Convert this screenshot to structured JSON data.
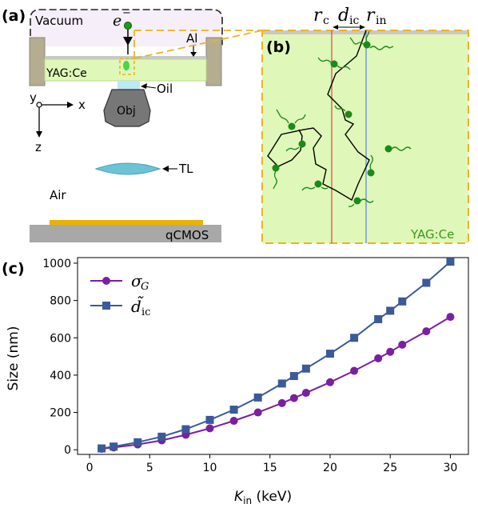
{
  "panel_a": {
    "label": "(a)",
    "vacuum": "Vacuum",
    "electron": "e",
    "electron_sup": "−",
    "al": "Al",
    "yag": "YAG:Ce",
    "oil": "Oil",
    "obj": "Obj",
    "axis_y": "y",
    "axis_x": "x",
    "axis_z": "z",
    "tl": "TL",
    "air": "Air",
    "detector": "qCMOS"
  },
  "panel_b": {
    "label": "(b)",
    "yag": "YAG:Ce",
    "r_c": "r",
    "r_c_sub": "c",
    "d_ic": "d",
    "d_ic_sub": "ic",
    "r_in": "r",
    "r_in_sub": "in"
  },
  "panel_c": {
    "label": "(c)"
  },
  "colors": {
    "yag_fill": "#dff7b8",
    "vacuum_fill": "#f6eef8",
    "dash_orange": "#e8b422",
    "sigma_color": "#7a1fa2",
    "dic_color": "#3a5a99",
    "rc_line": "#e05050",
    "rin_line": "#6688dd",
    "green_dot": "#1a8a1a"
  },
  "chart_data": {
    "type": "line",
    "xlabel": "K",
    "xlabel_sub": "in",
    "xlabel_unit": " (keV)",
    "ylabel": "Size (nm)",
    "xlim": [
      -1,
      31.5
    ],
    "ylim": [
      -25,
      1030
    ],
    "xticks": [
      0,
      5,
      10,
      15,
      20,
      25,
      30
    ],
    "yticks": [
      0,
      200,
      400,
      600,
      800,
      1000
    ],
    "legend_position": "top-left",
    "series": [
      {
        "name": "σ",
        "name_sub": "G",
        "marker": "circle",
        "color": "#7a1fa2",
        "x": [
          1,
          2,
          4,
          6,
          8,
          10,
          12,
          14,
          16,
          17,
          18,
          20,
          22,
          24,
          25,
          26,
          28,
          30
        ],
        "y": [
          5,
          12,
          28,
          50,
          80,
          115,
          155,
          200,
          250,
          277,
          305,
          362,
          423,
          490,
          525,
          563,
          635,
          712
        ]
      },
      {
        "name": "d̃",
        "name_sub": "ic",
        "marker": "square",
        "color": "#3a5a99",
        "x": [
          1,
          2,
          4,
          6,
          8,
          10,
          12,
          14,
          16,
          17,
          18,
          20,
          22,
          24,
          25,
          26,
          28,
          30
        ],
        "y": [
          7,
          17,
          40,
          70,
          110,
          160,
          215,
          280,
          355,
          395,
          435,
          515,
          600,
          700,
          745,
          795,
          895,
          1008
        ]
      }
    ]
  }
}
